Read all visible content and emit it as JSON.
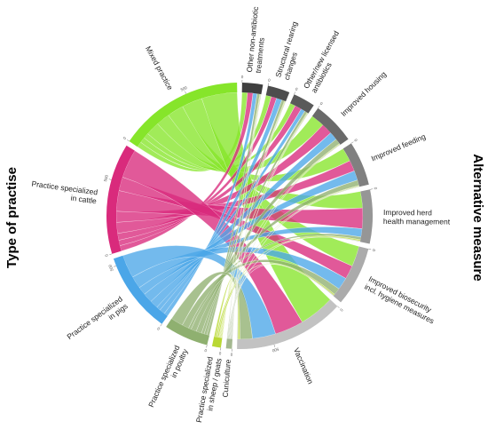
{
  "chart_data": {
    "type": "chord",
    "left_title": "Type of practise",
    "right_title": "Alternative measure",
    "sources": [
      {
        "label": [
          "Mixed practice"
        ],
        "color": "#86e52a",
        "ticks": [
          0,
          500
        ]
      },
      {
        "label": [
          "Practice specialized",
          "in cattle"
        ],
        "color": "#d92a7c",
        "ticks": [
          0,
          500
        ]
      },
      {
        "label": [
          "Practice specialized",
          "in pigs"
        ],
        "color": "#4ba6e8",
        "ticks": [
          0,
          500
        ]
      },
      {
        "label": [
          "Practice specialized",
          "in poultry"
        ],
        "color": "#8fb070",
        "ticks": [
          0
        ]
      },
      {
        "label": [
          "Practice specialized",
          "in sheep / goats"
        ],
        "color": "#b9d834",
        "ticks": [
          0
        ]
      },
      {
        "label": [
          "Cuniculture"
        ],
        "color": "#a4b890",
        "ticks": [
          0
        ]
      }
    ],
    "targets": [
      {
        "label": [
          "Other non-antibiotic",
          "treatments"
        ],
        "color": "#3f3f3f",
        "ticks": [
          0
        ]
      },
      {
        "label": [
          "Structural rearing",
          "changes"
        ],
        "color": "#4d4d4d",
        "ticks": [
          0
        ]
      },
      {
        "label": [
          "Other/new licensed",
          "antibiotics"
        ],
        "color": "#5a5a5a",
        "ticks": [
          0
        ]
      },
      {
        "label": [
          "Improved housing"
        ],
        "color": "#6a6a6a",
        "ticks": [
          0
        ]
      },
      {
        "label": [
          "Improved feeding"
        ],
        "color": "#808080",
        "ticks": [
          0
        ]
      },
      {
        "label": [
          "Improved herd",
          "health management"
        ],
        "color": "#969696",
        "ticks": [
          0
        ]
      },
      {
        "label": [
          "Improved biosecurity",
          "incl. hygiene measures"
        ],
        "color": "#ababab",
        "ticks": [
          0
        ]
      },
      {
        "label": [
          "Vaccination"
        ],
        "color": "#c2c2c2",
        "ticks": [
          0,
          500
        ]
      }
    ],
    "flows": [
      [
        40,
        40,
        40,
        100,
        100,
        120,
        150,
        260
      ],
      [
        40,
        40,
        50,
        80,
        80,
        150,
        100,
        210
      ],
      [
        30,
        40,
        30,
        60,
        70,
        60,
        90,
        170
      ],
      [
        20,
        20,
        20,
        40,
        40,
        20,
        50,
        90
      ],
      [
        5,
        5,
        5,
        5,
        5,
        10,
        10,
        15
      ],
      [
        5,
        5,
        5,
        5,
        5,
        5,
        5,
        5
      ]
    ]
  }
}
